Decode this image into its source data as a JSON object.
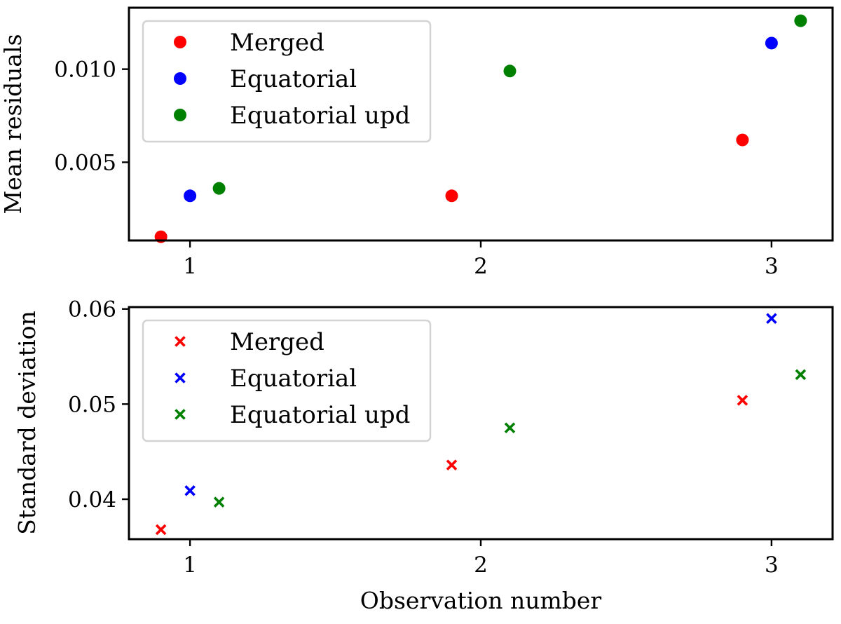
{
  "chart_data": [
    {
      "type": "scatter",
      "marker": "circle",
      "title": "",
      "xlabel": "",
      "ylabel": "Mean residuals",
      "xlim": [
        0.79,
        3.21
      ],
      "ylim": [
        0.0008,
        0.0133
      ],
      "xticks": [
        1,
        2,
        3
      ],
      "xtick_labels": [
        "1",
        "2",
        "3"
      ],
      "yticks": [
        0.005,
        0.01
      ],
      "ytick_labels": [
        "0.005",
        "0.010"
      ],
      "grid": false,
      "legend_position": "upper-left",
      "series": [
        {
          "name": "Merged",
          "color": "#ff0000",
          "x": [
            0.9,
            1.9,
            2.9
          ],
          "y": [
            0.001,
            0.0032,
            0.0062
          ]
        },
        {
          "name": "Equatorial",
          "color": "#0000ff",
          "x": [
            1.0,
            2.0,
            3.0
          ],
          "y": [
            0.0032,
            null,
            0.0114
          ]
        },
        {
          "name": "Equatorial upd",
          "color": "#008000",
          "x": [
            1.1,
            2.1,
            3.1
          ],
          "y": [
            0.0036,
            0.0099,
            0.0126
          ]
        }
      ]
    },
    {
      "type": "scatter",
      "marker": "x",
      "title": "",
      "xlabel": "Observation number",
      "ylabel": "Standard deviation",
      "xlim": [
        0.79,
        3.21
      ],
      "ylim": [
        0.0358,
        0.0602
      ],
      "xticks": [
        1,
        2,
        3
      ],
      "xtick_labels": [
        "1",
        "2",
        "3"
      ],
      "yticks": [
        0.04,
        0.05,
        0.06
      ],
      "ytick_labels": [
        "0.04",
        "0.05",
        "0.06"
      ],
      "grid": false,
      "legend_position": "upper-left",
      "series": [
        {
          "name": "Merged",
          "color": "#ff0000",
          "x": [
            0.9,
            1.9,
            2.9
          ],
          "y": [
            0.0368,
            0.0436,
            0.0504
          ]
        },
        {
          "name": "Equatorial",
          "color": "#0000ff",
          "x": [
            1.0,
            2.0,
            3.0
          ],
          "y": [
            0.0409,
            null,
            0.059
          ]
        },
        {
          "name": "Equatorial upd",
          "color": "#008000",
          "x": [
            1.1,
            2.1,
            3.1
          ],
          "y": [
            0.0397,
            0.0475,
            0.0531
          ]
        }
      ]
    }
  ]
}
